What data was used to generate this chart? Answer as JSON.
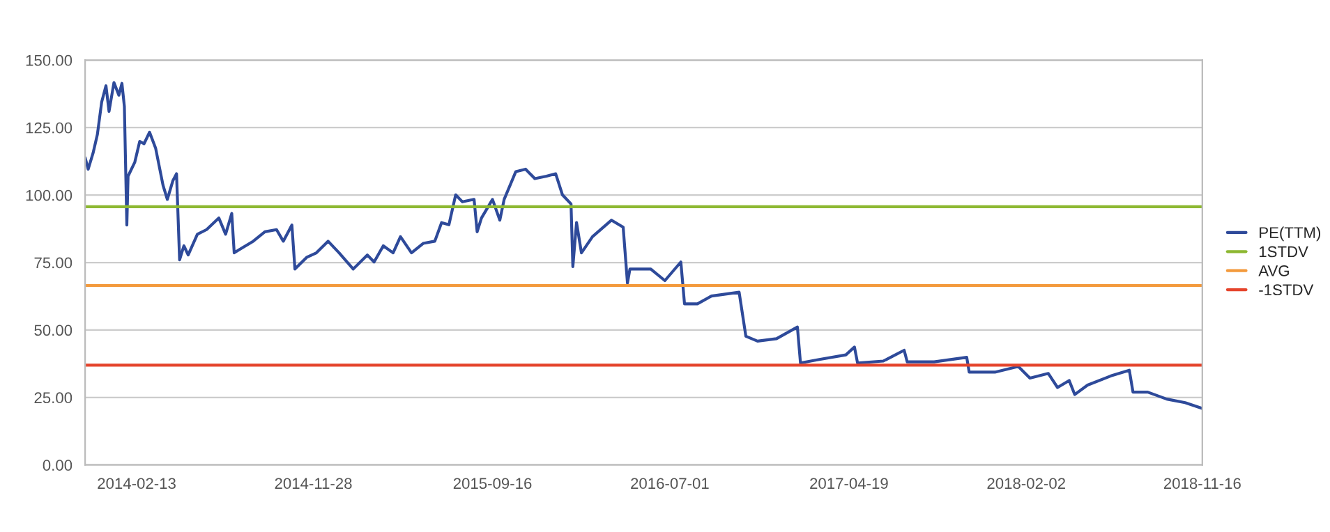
{
  "chart_data": {
    "type": "line",
    "x": [
      "2013-11-21",
      "2013-11-26",
      "2013-12-04",
      "2013-12-11",
      "2013-12-18",
      "2013-12-25",
      "2013-12-30",
      "2014-01-07",
      "2014-01-15",
      "2014-01-20",
      "2014-01-24",
      "2014-01-28",
      "2014-01-30",
      "2014-02-10",
      "2014-02-18",
      "2014-02-25",
      "2014-03-06",
      "2014-03-16",
      "2014-03-28",
      "2014-04-04",
      "2014-04-13",
      "2014-04-19",
      "2014-04-24",
      "2014-05-01",
      "2014-05-08",
      "2014-05-23",
      "2014-06-07",
      "2014-06-27",
      "2014-07-08",
      "2014-07-18",
      "2014-07-22",
      "2014-08-03",
      "2014-08-22",
      "2014-09-10",
      "2014-09-29",
      "2014-10-10",
      "2014-10-24",
      "2014-10-29",
      "2014-11-17",
      "2014-12-03",
      "2014-12-22",
      "2015-01-09",
      "2015-02-01",
      "2015-02-24",
      "2015-03-07",
      "2015-03-22",
      "2015-04-07",
      "2015-04-19",
      "2015-05-07",
      "2015-05-26",
      "2015-06-14",
      "2015-06-25",
      "2015-07-07",
      "2015-07-18",
      "2015-07-29",
      "2015-08-17",
      "2015-08-22",
      "2015-08-29",
      "2015-09-16",
      "2015-09-28",
      "2015-10-05",
      "2015-10-24",
      "2015-11-09",
      "2015-11-24",
      "2015-12-13",
      "2015-12-28",
      "2016-01-08",
      "2016-01-22",
      "2016-01-25",
      "2016-01-31",
      "2016-02-08",
      "2016-02-26",
      "2016-03-28",
      "2016-04-16",
      "2016-04-23",
      "2016-04-27",
      "2016-05-31",
      "2016-06-23",
      "2016-07-19",
      "2016-07-25",
      "2016-08-15",
      "2016-09-07",
      "2016-10-22",
      "2016-11-02",
      "2016-11-21",
      "2016-12-22",
      "2017-01-25",
      "2017-01-30",
      "2017-02-28",
      "2017-04-14",
      "2017-04-28",
      "2017-05-03",
      "2017-06-14",
      "2017-07-18",
      "2017-07-23",
      "2017-09-05",
      "2017-10-28",
      "2017-11-01",
      "2017-12-13",
      "2018-01-20",
      "2018-02-08",
      "2018-03-10",
      "2018-03-25",
      "2018-04-13",
      "2018-04-22",
      "2018-05-13",
      "2018-06-20",
      "2018-07-20",
      "2018-07-26",
      "2018-08-19",
      "2018-09-19",
      "2018-10-19",
      "2018-11-15"
    ],
    "series": [
      {
        "name": "PE(TTM)",
        "color": "#2e4a9a",
        "values": [
          113.9,
          109.6,
          115.6,
          122.5,
          134.5,
          140.5,
          131,
          141.7,
          137,
          141.4,
          132.8,
          88.9,
          107,
          112.2,
          119.9,
          119,
          123.3,
          117.3,
          103.6,
          98.4,
          105.3,
          107.9,
          76,
          81.2,
          77.8,
          85.5,
          87.2,
          91.5,
          85.5,
          93.2,
          78.6,
          80.3,
          82.9,
          86.4,
          87.2,
          82.9,
          88.9,
          72.6,
          76.9,
          78.6,
          82.9,
          78.6,
          72.6,
          77.8,
          75.2,
          81.2,
          78.6,
          84.6,
          78.6,
          82.1,
          82.9,
          89.8,
          89,
          100.1,
          97.5,
          98.4,
          86.4,
          91.5,
          98.4,
          90.7,
          98.4,
          108.7,
          109.6,
          106.1,
          107,
          107.9,
          100.1,
          96.7,
          73.5,
          89.8,
          78.6,
          84.6,
          90.7,
          88.1,
          67.4,
          72.6,
          72.6,
          68.3,
          75.2,
          59.7,
          59.7,
          62.6,
          64,
          47.7,
          45.9,
          46.8,
          51.1,
          37.8,
          39,
          40.8,
          43.7,
          37.8,
          38.5,
          42.5,
          38.2,
          38.2,
          39.9,
          34.4,
          34.4,
          36.5,
          32.2,
          33.9,
          28.7,
          31.3,
          26.1,
          29.6,
          33,
          35.1,
          27,
          27,
          24.4,
          23.1,
          21
        ]
      }
    ],
    "ref_lines": [
      {
        "axis": "y",
        "value": 95.7,
        "label": "1STDV",
        "color": "#8db832"
      },
      {
        "axis": "y",
        "value": 66.5,
        "label": "AVG",
        "color": "#f39a3c"
      },
      {
        "axis": "y",
        "value": 37,
        "label": "-1STDV",
        "color": "#e5442c"
      }
    ],
    "xlim": [
      "2013-11-21",
      "2018-11-16"
    ],
    "xticks": [
      {
        "value": "2014-02-13",
        "label": "2014-02-13"
      },
      {
        "value": "2014-11-28",
        "label": "2014-11-28"
      },
      {
        "value": "2015-09-16",
        "label": "2015-09-16"
      },
      {
        "value": "2016-07-01",
        "label": "2016-07-01"
      },
      {
        "value": "2017-04-19",
        "label": "2017-04-19"
      },
      {
        "value": "2018-02-02",
        "label": "2018-02-02"
      },
      {
        "value": "2018-11-16",
        "label": "2018-11-16"
      }
    ],
    "ylim": [
      0,
      150
    ],
    "yticks": [
      {
        "value": 0,
        "label": "0.00"
      },
      {
        "value": 25,
        "label": "25.00"
      },
      {
        "value": 50,
        "label": "50.00"
      },
      {
        "value": 75,
        "label": "75.00"
      },
      {
        "value": 100,
        "label": "100.00"
      },
      {
        "value": 125,
        "label": "125.00"
      },
      {
        "value": 150,
        "label": "150.00"
      }
    ],
    "grid": "y",
    "legend": "right",
    "line_style": "solid",
    "marker": "none"
  }
}
